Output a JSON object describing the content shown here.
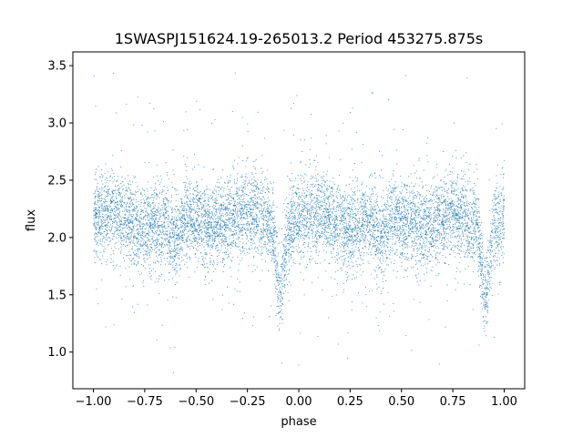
{
  "chart_data": {
    "type": "scatter",
    "title": "1SWASPJ151624.19-265013.2 Period 453275.875s",
    "xlabel": "phase",
    "ylabel": "flux",
    "xlim": [
      -1.1,
      1.1
    ],
    "ylim": [
      0.68,
      3.62
    ],
    "x_ticks": [
      -1.0,
      -0.75,
      -0.5,
      -0.25,
      0.0,
      0.25,
      0.5,
      0.75,
      1.0
    ],
    "x_tick_labels": [
      "−1.00",
      "−0.75",
      "−0.50",
      "−0.25",
      "0.00",
      "0.25",
      "0.50",
      "0.75",
      "1.00"
    ],
    "y_ticks": [
      1.0,
      1.5,
      2.0,
      2.5,
      3.0,
      3.5
    ],
    "y_tick_labels": [
      "1.0",
      "1.5",
      "2.0",
      "2.5",
      "3.0",
      "3.5"
    ],
    "grid": false,
    "legend": false,
    "marker_color": "#1f77b4",
    "series": [
      {
        "phase_coverage": [
          -1.0,
          1.0
        ],
        "baseline_flux": 2.15,
        "typical_scatter": 0.18,
        "flux_range": [
          0.82,
          3.45
        ],
        "primary_dip": {
          "phase": [
            -0.09,
            0.91
          ],
          "min_flux": 1.55
        },
        "secondary_dip": {
          "phase": [
            -0.6,
            0.4
          ],
          "min_flux": 1.95
        }
      }
    ]
  }
}
